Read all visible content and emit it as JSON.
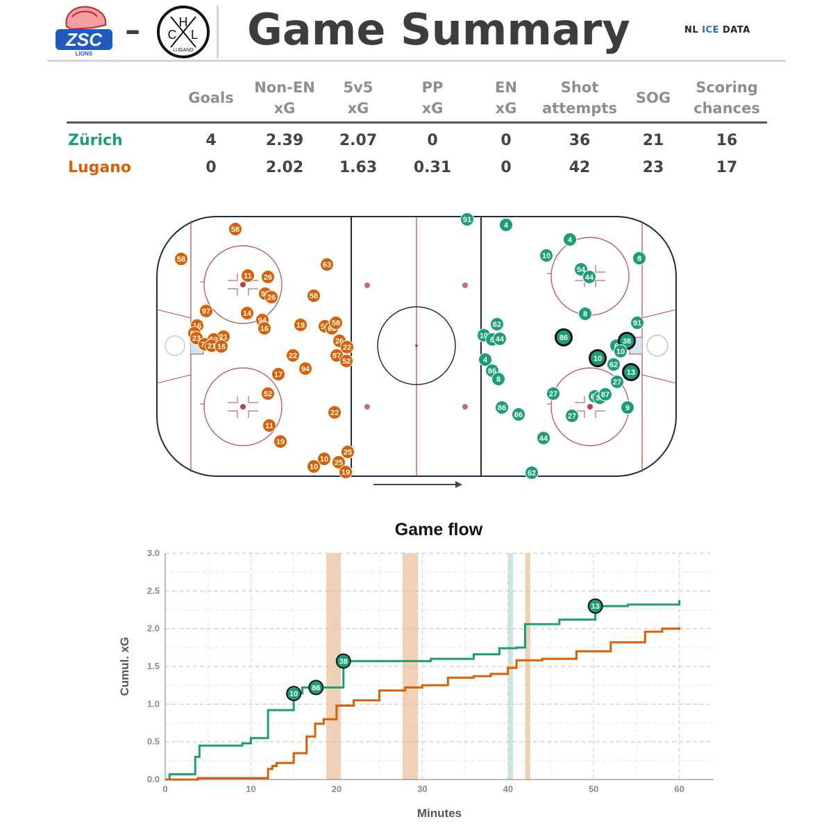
{
  "header": {
    "title": "Game Summary",
    "brand_prefix": "NL ",
    "brand_ice": "ICE",
    "brand_suffix": " DATA",
    "home_logo_text": "ZSC",
    "home_logo_sub": "LIONS",
    "away_logo_letters": [
      "H",
      "C",
      "L"
    ],
    "away_logo_sub": "LUGANO",
    "separator": "–"
  },
  "colors": {
    "zurich": "#1b9e77",
    "lugano": "#d95f02",
    "rink_line": "#1a2a4a",
    "red_line": "#b5454a",
    "powerplay_band": "#efc9a8",
    "pp_band_green": "#bfe3d6"
  },
  "table": {
    "headers": [
      [
        "Goals"
      ],
      [
        "Non-EN",
        "xG"
      ],
      [
        "5v5",
        "xG"
      ],
      [
        "PP",
        "xG"
      ],
      [
        "EN",
        "xG"
      ],
      [
        "Shot",
        "attempts"
      ],
      [
        "SOG"
      ],
      [
        "Scoring",
        "chances"
      ]
    ],
    "rows": [
      {
        "team": "Zürich",
        "color": "#1b9e77",
        "values": [
          "4",
          "2.39",
          "2.07",
          "0",
          "0",
          "36",
          "21",
          "16"
        ]
      },
      {
        "team": "Lugano",
        "color": "#d95f02",
        "values": [
          "0",
          "2.02",
          "1.63",
          "0.31",
          "0",
          "42",
          "23",
          "17"
        ]
      }
    ]
  },
  "rink_shots": {
    "lugano": [
      [
        "58",
        339,
        330
      ],
      [
        "58",
        261,
        373
      ],
      [
        "63",
        471,
        381
      ],
      [
        "11",
        357,
        397
      ],
      [
        "26",
        386,
        399
      ],
      [
        "97",
        382,
        423
      ],
      [
        "26",
        391,
        428
      ],
      [
        "58",
        452,
        426
      ],
      [
        "97",
        297,
        448
      ],
      [
        "14",
        356,
        451
      ],
      [
        "94",
        378,
        461
      ],
      [
        "16",
        381,
        473
      ],
      [
        "19",
        433,
        468
      ],
      [
        "52",
        468,
        470
      ],
      [
        "63",
        478,
        473
      ],
      [
        "58",
        484,
        465
      ],
      [
        "16",
        284,
        469
      ],
      [
        "52",
        280,
        480
      ],
      [
        "23",
        283,
        487
      ],
      [
        "21",
        322,
        485
      ],
      [
        "52",
        308,
        489
      ],
      [
        "71",
        295,
        496
      ],
      [
        "21",
        305,
        498
      ],
      [
        "16",
        319,
        499
      ],
      [
        "26",
        489,
        491
      ],
      [
        "22",
        500,
        500
      ],
      [
        "97",
        485,
        512
      ],
      [
        "52",
        499,
        520
      ],
      [
        "22",
        422,
        512
      ],
      [
        "94",
        440,
        531
      ],
      [
        "17",
        401,
        539
      ],
      [
        "52",
        386,
        567
      ],
      [
        "22",
        482,
        594
      ],
      [
        "11",
        388,
        613
      ],
      [
        "19",
        404,
        636
      ],
      [
        "25",
        501,
        651
      ],
      [
        "10",
        467,
        661
      ],
      [
        "25",
        488,
        666
      ],
      [
        "10",
        452,
        672
      ],
      [
        "19",
        498,
        680
      ]
    ],
    "zurich": [
      [
        "91",
        673,
        316
      ],
      [
        "4",
        729,
        324
      ],
      [
        "4",
        821,
        345
      ],
      [
        "10",
        787,
        368
      ],
      [
        "8",
        921,
        372
      ],
      [
        "54",
        837,
        388
      ],
      [
        "44",
        849,
        399
      ],
      [
        "8",
        843,
        452
      ],
      [
        "91",
        918,
        465
      ],
      [
        "62",
        716,
        467
      ],
      [
        "10",
        697,
        483
      ],
      [
        "6",
        709,
        489
      ],
      [
        "44",
        720,
        488
      ],
      [
        "86",
        812,
        486
      ],
      [
        "6",
        888,
        498
      ],
      [
        "38",
        903,
        491
      ],
      [
        "10",
        894,
        506
      ],
      [
        "10",
        861,
        516
      ],
      [
        "62",
        884,
        525
      ],
      [
        "13",
        909,
        536
      ],
      [
        "4",
        699,
        518
      ],
      [
        "86",
        709,
        534
      ],
      [
        "8",
        718,
        546
      ],
      [
        "27",
        889,
        550
      ],
      [
        "27",
        797,
        567
      ],
      [
        "62",
        857,
        571
      ],
      [
        "38",
        864,
        573
      ],
      [
        "87",
        872,
        568
      ],
      [
        "86",
        723,
        587
      ],
      [
        "86",
        747,
        597
      ],
      [
        "9",
        904,
        587
      ],
      [
        "27",
        824,
        599
      ],
      [
        "44",
        783,
        631
      ],
      [
        "62",
        766,
        681
      ]
    ],
    "zurich_goal_labels": [
      "86",
      "10",
      "38",
      "13"
    ],
    "direction": "attacking right"
  },
  "chart_data": {
    "type": "line",
    "title": "Game flow",
    "xlabel": "Minutes",
    "ylabel": "Cumul. xG",
    "xlim": [
      0,
      64
    ],
    "ylim": [
      0,
      3.0
    ],
    "xticks": [
      0,
      10,
      20,
      30,
      40,
      50,
      60
    ],
    "yticks": [
      0.0,
      0.5,
      1.0,
      1.5,
      2.0,
      2.5,
      3.0
    ],
    "series": [
      {
        "name": "Zürich",
        "color": "#1b9e77",
        "step": true,
        "x": [
          0,
          0.5,
          3.5,
          4.0,
          9.0,
          10.0,
          12.0,
          15.0,
          16.0,
          20.8,
          23.0,
          31.0,
          36.0,
          39.0,
          41.0,
          42.0,
          46.0,
          50.2,
          54.0,
          60.0
        ],
        "y": [
          0,
          0.07,
          0.3,
          0.45,
          0.48,
          0.55,
          0.92,
          1.14,
          1.22,
          1.57,
          1.57,
          1.6,
          1.66,
          1.74,
          1.75,
          2.06,
          2.12,
          2.3,
          2.32,
          2.38
        ]
      },
      {
        "name": "Lugano",
        "color": "#d95f02",
        "step": true,
        "x": [
          0,
          3.8,
          12.0,
          12.5,
          13.0,
          15.0,
          16.5,
          17.5,
          18.5,
          20.0,
          22.0,
          25.0,
          28.0,
          30.0,
          33.0,
          36.0,
          38.0,
          40.0,
          41.0,
          44.0,
          48.0,
          52.0,
          56.0,
          58.0,
          60.0
        ],
        "y": [
          0,
          0.02,
          0.14,
          0.18,
          0.22,
          0.35,
          0.57,
          0.74,
          0.8,
          0.98,
          1.05,
          1.18,
          1.22,
          1.25,
          1.35,
          1.37,
          1.4,
          1.48,
          1.58,
          1.6,
          1.7,
          1.82,
          1.96,
          2.0,
          2.02
        ]
      }
    ],
    "shaded_intervals": [
      {
        "from": 18.8,
        "to": 20.5,
        "color": "#efc9a8"
      },
      {
        "from": 27.7,
        "to": 29.5,
        "color": "#efc9a8"
      },
      {
        "from": 40.0,
        "to": 40.6,
        "color": "#bfe3d6"
      },
      {
        "from": 42.0,
        "to": 42.6,
        "color": "#efc9a8"
      }
    ],
    "goal_markers": [
      {
        "label": "10",
        "x": 15.0,
        "y": 1.14
      },
      {
        "label": "86",
        "x": 17.6,
        "y": 1.22
      },
      {
        "label": "38",
        "x": 20.8,
        "y": 1.57
      },
      {
        "label": "13",
        "x": 50.2,
        "y": 2.3
      }
    ]
  }
}
